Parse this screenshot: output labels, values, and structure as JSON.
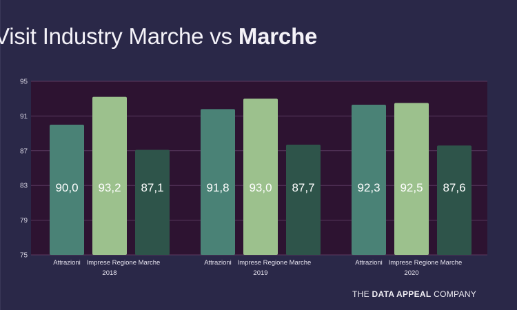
{
  "title": {
    "prefix": "Visit Industry Marche vs",
    "bold": "Marche"
  },
  "brand": {
    "pre": "THE",
    "bold": "DATA APPEAL",
    "post": "COMPANY"
  },
  "colors": {
    "background": "#2a2848",
    "plot_background": "#2d1331",
    "attrazioni": "#4a8276",
    "imprese": "#9cc18d",
    "third": "#2e544a"
  },
  "chart_data": {
    "type": "bar",
    "ylim": [
      75,
      95
    ],
    "yticks": [
      "75",
      "79",
      "83",
      "87",
      "91",
      "95"
    ],
    "grid": true,
    "groups": [
      {
        "year": "2018",
        "bars": [
          {
            "label": "Attrazioni",
            "value": 90.0,
            "display": "90,0",
            "color": "attrazioni"
          },
          {
            "label": "Imprese Regione Marche",
            "value": 93.2,
            "display": "93,2",
            "color": "imprese"
          },
          {
            "label": "",
            "value": 87.1,
            "display": "87,1",
            "color": "third"
          }
        ]
      },
      {
        "year": "2019",
        "bars": [
          {
            "label": "Attrazioni",
            "value": 91.8,
            "display": "91,8",
            "color": "attrazioni"
          },
          {
            "label": "Imprese Regione Marche",
            "value": 93.0,
            "display": "93,0",
            "color": "imprese"
          },
          {
            "label": "",
            "value": 87.7,
            "display": "87,7",
            "color": "third"
          }
        ]
      },
      {
        "year": "2020",
        "bars": [
          {
            "label": "Attrazioni",
            "value": 92.3,
            "display": "92,3",
            "color": "attrazioni"
          },
          {
            "label": "Imprese Regione Marche",
            "value": 92.5,
            "display": "92,5",
            "color": "imprese"
          },
          {
            "label": "",
            "value": 87.6,
            "display": "87,6",
            "color": "third"
          }
        ]
      }
    ]
  }
}
